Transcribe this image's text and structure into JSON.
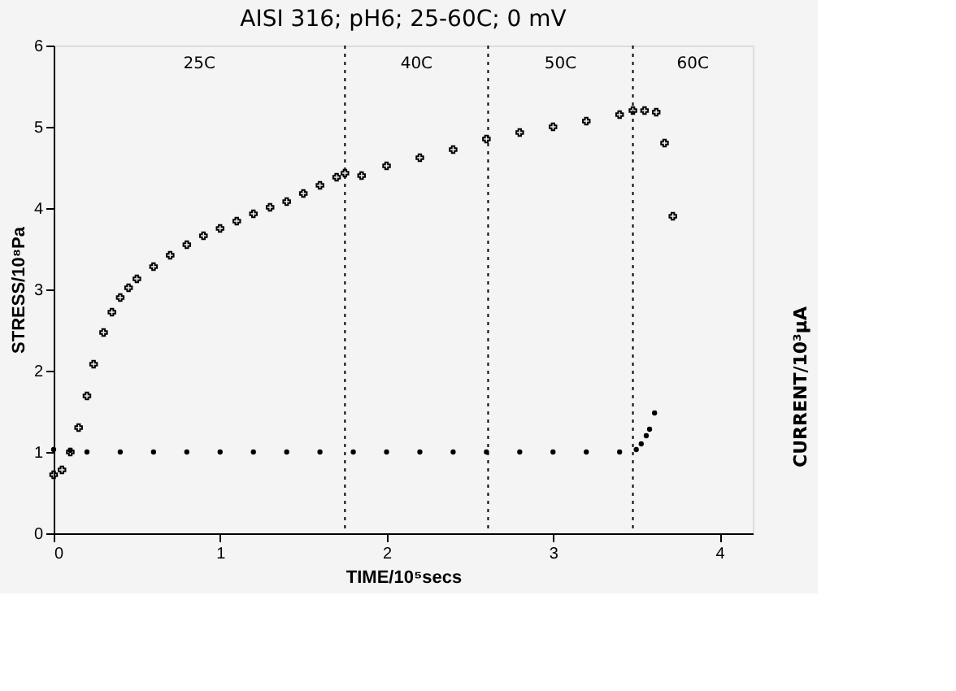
{
  "chart_data": {
    "type": "scatter",
    "title": "AISI 316; pH6; 25-60C; 0 mV",
    "xlabel": "TIME/10⁵secs",
    "ylabel": "STRESS/10⁸Pa",
    "y2label": "CURRENT/10³μA",
    "xlim": [
      0,
      4.2
    ],
    "xticks": [
      0,
      1,
      2,
      3,
      4
    ],
    "ylim": [
      0,
      6
    ],
    "yticks": [
      0,
      1,
      2,
      3,
      4,
      5,
      6
    ],
    "grid": false,
    "legend": false,
    "series": [
      {
        "color": "#000000",
        "marker": "cross",
        "x": [
          0,
          0.05,
          0.1,
          0.15,
          0.2,
          0.24,
          0.3,
          0.35,
          0.4,
          0.45,
          0.5,
          0.6,
          0.7,
          0.8,
          0.9,
          1.0,
          1.1,
          1.2,
          1.3,
          1.4,
          1.5,
          1.6,
          1.7,
          1.75,
          1.85,
          2.0,
          2.2,
          2.4,
          2.6,
          2.8,
          3.0,
          3.2,
          3.4,
          3.48,
          3.55,
          3.62,
          3.67,
          3.72
        ],
        "values": [
          0.72,
          0.78,
          1.0,
          1.3,
          1.69,
          2.08,
          2.47,
          2.72,
          2.9,
          3.02,
          3.13,
          3.28,
          3.42,
          3.55,
          3.66,
          3.75,
          3.84,
          3.93,
          4.01,
          4.08,
          4.18,
          4.28,
          4.38,
          4.43,
          4.4,
          4.52,
          4.62,
          4.72,
          4.85,
          4.93,
          5.0,
          5.07,
          5.15,
          5.2,
          5.2,
          5.18,
          4.8,
          3.9
        ]
      },
      {
        "color": "#000000",
        "marker": "circle",
        "x": [
          0,
          0.1,
          0.2,
          0.4,
          0.6,
          0.8,
          1.0,
          1.2,
          1.4,
          1.6,
          1.8,
          2.0,
          2.2,
          2.4,
          2.6,
          2.8,
          3.0,
          3.2,
          3.4,
          3.5,
          3.53,
          3.56,
          3.58,
          3.61
        ],
        "values": [
          1.03,
          1.02,
          1.0,
          1.0,
          1.0,
          1.0,
          1.0,
          1.0,
          1.0,
          1.0,
          1.0,
          1.0,
          1.0,
          1.0,
          1.0,
          1.0,
          1.0,
          1.0,
          1.0,
          1.03,
          1.1,
          1.2,
          1.28,
          1.48
        ]
      }
    ],
    "ref_lines": [
      {
        "axis": "x",
        "value": 1.75,
        "line_style": "dotted"
      },
      {
        "axis": "x",
        "value": 2.61,
        "line_style": "dotted"
      },
      {
        "axis": "x",
        "value": 3.48,
        "line_style": "dotted"
      }
    ],
    "annotations": [
      "25C",
      "40C",
      "50C",
      "60C"
    ]
  }
}
